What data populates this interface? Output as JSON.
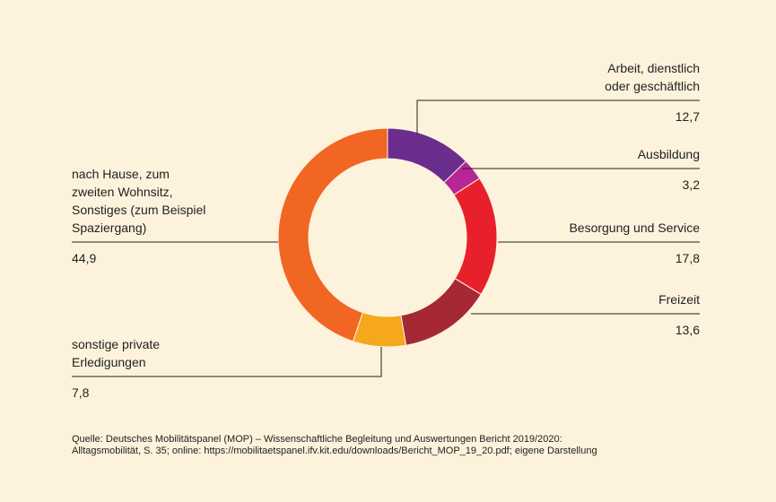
{
  "chart_data": {
    "type": "donut",
    "categories": [
      "Arbeit, dienstlich oder geschäftlich",
      "Ausbildung",
      "Besorgung und Service",
      "Freizeit",
      "sonstige private Erledigungen",
      "nach Hause, zum zweiten Wohnsitz, Sonstiges (zum Beispiel Spaziergang)"
    ],
    "values": [
      12.7,
      3.2,
      17.8,
      13.6,
      7.8,
      44.9
    ],
    "value_labels": [
      "12,7",
      "3,2",
      "17,8",
      "13,6",
      "7,8",
      "44,9"
    ],
    "colors": [
      "#6a2d8d",
      "#b82596",
      "#e8202b",
      "#a52935",
      "#f5a81c",
      "#f26624"
    ],
    "source": [
      "Quelle: Deutsches Mobilitätspanel (MOP) – Wissenschaftliche Begleitung und Auswertungen Bericht 2019/2020:",
      "Alltagsmobilität, S. 35; online: https://mobilitaetspanel.ifv.kit.edu/downloads/Bericht_MOP_19_20.pdf; eigene Darstellung"
    ]
  }
}
